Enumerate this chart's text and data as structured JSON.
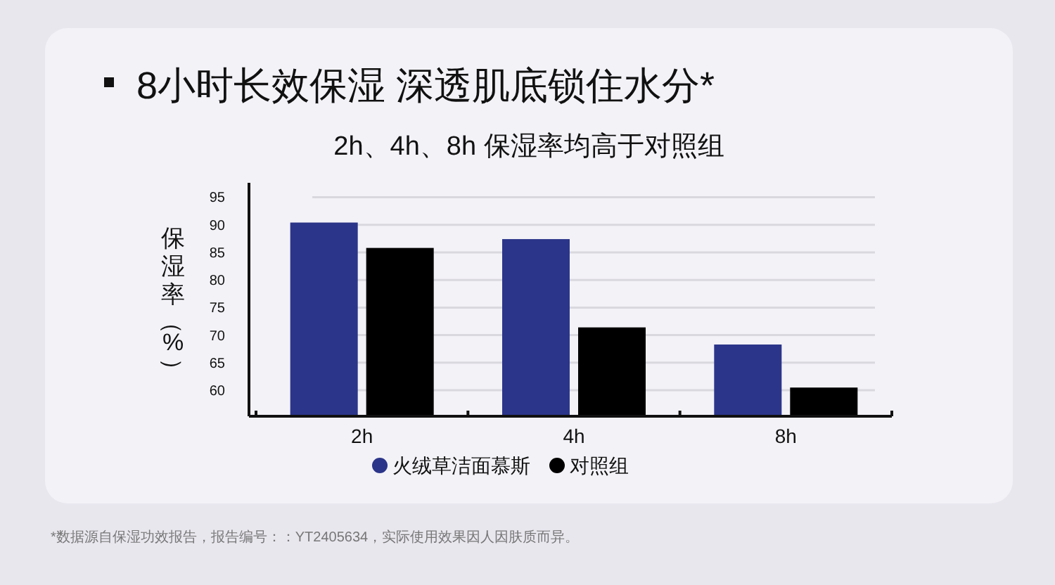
{
  "chart_data": {
    "type": "bar",
    "title": "8小时长效保湿 深透肌底锁住水分*",
    "subtitle": "2h、4h、8h 保湿率均高于对照组",
    "ylabel": "保湿率（%）",
    "categories": [
      "2h",
      "4h",
      "8h"
    ],
    "series": [
      {
        "name": "火绒草洁面慕斯",
        "color": "#2b3589",
        "values": [
          90.4,
          87.4,
          68.3
        ]
      },
      {
        "name": "对照组",
        "color": "#000000",
        "values": [
          85.8,
          71.4,
          60.5
        ]
      }
    ],
    "ylim": [
      55.3,
      97.6
    ],
    "yticks": [
      60,
      65,
      70,
      75,
      80,
      85,
      90,
      95
    ],
    "grid": "y",
    "legend": "bottom",
    "annotations": [
      "*数据源自保湿功效报告，报告编号：：YT2405634，实际使用效果因人因肤质而异。"
    ]
  }
}
